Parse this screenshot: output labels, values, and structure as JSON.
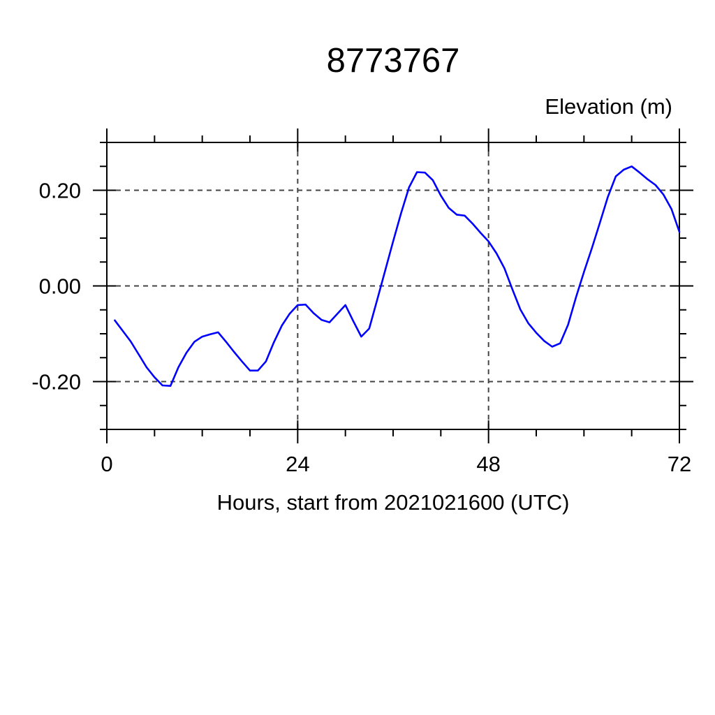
{
  "page": {
    "background_color": "#ffffff"
  },
  "chart_data": {
    "type": "line",
    "title": "8773767",
    "ylabel": "Elevation (m)",
    "xlabel": "Hours, start from 2021021600 (UTC)",
    "xlim": [
      0,
      72
    ],
    "ylim": [
      -0.3,
      0.3
    ],
    "x_major_ticks": [
      0,
      24,
      48,
      72
    ],
    "x_tick_labels": [
      "0",
      "24",
      "48",
      "72"
    ],
    "x_minor_step": 6,
    "y_major_ticks": [
      -0.2,
      0.0,
      0.2
    ],
    "y_tick_labels": [
      "-0.20",
      "0.00",
      "0.20"
    ],
    "y_minor_step": 0.05,
    "grid": "dashed-at-major-ticks",
    "legend_position": "none",
    "line_color": "#0000ff",
    "axis_color": "#000000",
    "grid_color": "#444444",
    "series": [
      {
        "name": "elevation",
        "x": [
          1,
          2,
          3,
          4,
          5,
          6,
          7,
          8,
          9,
          10,
          11,
          12,
          13,
          14,
          15,
          16,
          17,
          18,
          19,
          20,
          21,
          22,
          23,
          24,
          25,
          26,
          27,
          28,
          29,
          30,
          31,
          32,
          33,
          34,
          35,
          36,
          37,
          38,
          39,
          40,
          41,
          42,
          43,
          44,
          45,
          46,
          47,
          48,
          49,
          50,
          51,
          52,
          53,
          54,
          55,
          56,
          57,
          58,
          59,
          60,
          61,
          62,
          63,
          64,
          65,
          66,
          67,
          68,
          69,
          70,
          71,
          72
        ],
        "y": [
          -0.072,
          -0.094,
          -0.116,
          -0.143,
          -0.17,
          -0.191,
          -0.208,
          -0.209,
          -0.17,
          -0.14,
          -0.117,
          -0.106,
          -0.101,
          -0.097,
          -0.117,
          -0.138,
          -0.158,
          -0.177,
          -0.177,
          -0.158,
          -0.118,
          -0.083,
          -0.058,
          -0.04,
          -0.039,
          -0.057,
          -0.071,
          -0.076,
          -0.058,
          -0.04,
          -0.074,
          -0.106,
          -0.089,
          -0.029,
          0.032,
          0.093,
          0.152,
          0.206,
          0.238,
          0.237,
          0.221,
          0.189,
          0.163,
          0.149,
          0.147,
          0.13,
          0.111,
          0.093,
          0.068,
          0.037,
          -0.007,
          -0.049,
          -0.078,
          -0.098,
          -0.115,
          -0.127,
          -0.12,
          -0.081,
          -0.024,
          0.029,
          0.079,
          0.132,
          0.186,
          0.229,
          0.243,
          0.25,
          0.237,
          0.223,
          0.211,
          0.191,
          0.161,
          0.113
        ]
      }
    ]
  }
}
